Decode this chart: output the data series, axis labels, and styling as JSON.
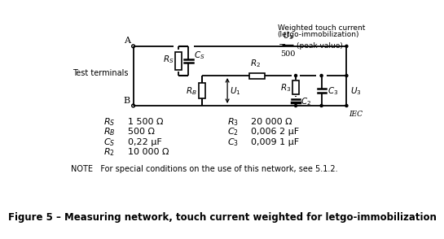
{
  "title": "Figure 5 – Measuring network, touch current weighted for letgo-immobilization",
  "note": "NOTE   For special conditions on the use of this network, see 5.1.2.",
  "rows_left": [
    [
      "R_S",
      "1 500 Ω"
    ],
    [
      "R_B",
      "500 Ω"
    ],
    [
      "C_S",
      "0,22 μF"
    ],
    [
      "R_2",
      "10 000 Ω"
    ]
  ],
  "rows_right": [
    [
      "R_3",
      "20 000 Ω"
    ],
    [
      "C_2",
      "0,006 2 μF"
    ],
    [
      "C_3",
      "0,009 1 μF"
    ]
  ],
  "bg_color": "#ffffff"
}
